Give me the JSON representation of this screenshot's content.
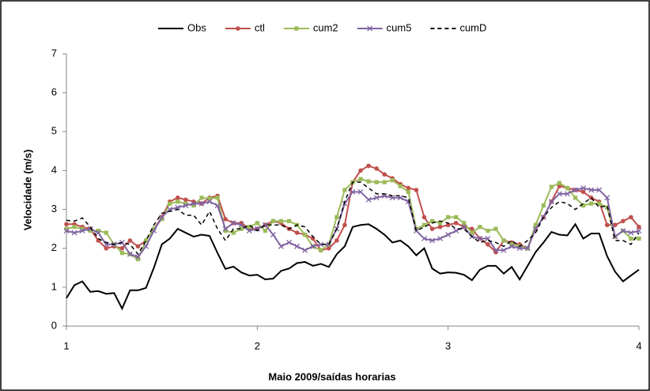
{
  "chart_data": {
    "type": "line",
    "xlabel": "Maio 2009/saídas horarias",
    "ylabel": "Velocidade (m/s)",
    "x": [
      1,
      1.0417,
      1.0833,
      1.125,
      1.1667,
      1.2083,
      1.25,
      1.2917,
      1.3333,
      1.375,
      1.4167,
      1.4583,
      1.5,
      1.5417,
      1.5833,
      1.625,
      1.6667,
      1.7083,
      1.75,
      1.7917,
      1.8333,
      1.875,
      1.9167,
      1.9583,
      2,
      2.0417,
      2.0833,
      2.125,
      2.1667,
      2.2083,
      2.25,
      2.2917,
      2.3333,
      2.375,
      2.4167,
      2.4583,
      2.5,
      2.5417,
      2.5833,
      2.625,
      2.6667,
      2.7083,
      2.75,
      2.7917,
      2.8333,
      2.875,
      2.9167,
      2.9583,
      3,
      3.0417,
      3.0833,
      3.125,
      3.1667,
      3.2083,
      3.25,
      3.2917,
      3.3333,
      3.375,
      3.4167,
      3.4583,
      3.5,
      3.5417,
      3.5833,
      3.625,
      3.6667,
      3.7083,
      3.75,
      3.7917,
      3.8333,
      3.875,
      3.9167,
      3.9583,
      4
    ],
    "series": [
      {
        "name": "Obs",
        "color": "#000000",
        "marker": "none",
        "dash": false,
        "values": [
          0.72,
          1.05,
          1.15,
          0.88,
          0.9,
          0.83,
          0.85,
          0.45,
          0.92,
          0.92,
          0.98,
          1.5,
          2.1,
          2.25,
          2.5,
          2.4,
          2.3,
          2.35,
          2.32,
          1.88,
          1.47,
          1.53,
          1.38,
          1.3,
          1.32,
          1.2,
          1.22,
          1.42,
          1.48,
          1.62,
          1.65,
          1.55,
          1.6,
          1.52,
          1.85,
          2.05,
          2.55,
          2.6,
          2.62,
          2.5,
          2.35,
          2.15,
          2.2,
          2.05,
          1.82,
          2.0,
          1.48,
          1.35,
          1.38,
          1.37,
          1.32,
          1.18,
          1.45,
          1.55,
          1.55,
          1.35,
          1.52,
          1.2,
          1.55,
          1.9,
          2.15,
          2.42,
          2.35,
          2.33,
          2.62,
          2.25,
          2.38,
          2.38,
          1.8,
          1.4,
          1.15,
          1.3,
          1.45
        ]
      },
      {
        "name": "ctl",
        "color": "#c0504d",
        "marker": "circle",
        "dash": false,
        "values": [
          2.62,
          2.62,
          2.55,
          2.5,
          2.2,
          2.0,
          2.05,
          2.0,
          2.2,
          2.05,
          2.2,
          2.5,
          2.8,
          3.2,
          3.3,
          3.25,
          3.2,
          3.15,
          3.3,
          3.35,
          2.75,
          2.65,
          2.65,
          2.5,
          2.5,
          2.6,
          2.7,
          2.65,
          2.5,
          2.4,
          2.35,
          2.25,
          1.95,
          2.0,
          2.2,
          2.6,
          3.7,
          4.0,
          4.12,
          4.05,
          3.9,
          3.8,
          3.65,
          3.55,
          3.5,
          2.8,
          2.5,
          2.55,
          2.6,
          2.65,
          2.55,
          2.5,
          2.25,
          2.1,
          1.9,
          2.2,
          2.15,
          2.1,
          2.0,
          2.5,
          2.8,
          3.2,
          3.6,
          3.55,
          3.5,
          3.45,
          3.3,
          3.2,
          2.6,
          2.6,
          2.7,
          2.8,
          2.55
        ]
      },
      {
        "name": "cum2",
        "color": "#9bbb59",
        "marker": "square",
        "dash": false,
        "values": [
          2.5,
          2.55,
          2.5,
          2.45,
          2.45,
          2.4,
          2.1,
          1.88,
          1.85,
          1.72,
          2.2,
          2.5,
          2.75,
          3.15,
          3.2,
          3.15,
          3.1,
          3.3,
          3.28,
          3.3,
          2.45,
          2.4,
          2.5,
          2.55,
          2.65,
          2.45,
          2.7,
          2.7,
          2.7,
          2.6,
          2.35,
          2.05,
          1.95,
          2.1,
          2.8,
          3.5,
          3.7,
          3.78,
          3.72,
          3.7,
          3.7,
          3.75,
          3.6,
          3.45,
          2.5,
          2.6,
          2.7,
          2.65,
          2.8,
          2.8,
          2.65,
          2.4,
          2.55,
          2.45,
          2.5,
          2.2,
          2.1,
          2.05,
          2.0,
          2.6,
          3.1,
          3.58,
          3.68,
          3.55,
          3.3,
          3.1,
          3.15,
          3.15,
          3.05,
          2.3,
          2.45,
          2.25,
          2.25
        ]
      },
      {
        "name": "cum5",
        "color": "#8064a2",
        "marker": "cross",
        "dash": false,
        "values": [
          2.45,
          2.4,
          2.45,
          2.5,
          2.4,
          2.1,
          2.1,
          2.15,
          1.85,
          1.78,
          2.05,
          2.45,
          2.8,
          3.0,
          3.05,
          3.1,
          3.15,
          3.15,
          3.2,
          3.1,
          2.5,
          2.65,
          2.6,
          2.45,
          2.5,
          2.6,
          2.35,
          2.05,
          2.15,
          2.05,
          1.95,
          2.05,
          2.1,
          2.1,
          2.5,
          3.15,
          3.45,
          3.45,
          3.25,
          3.3,
          3.35,
          3.3,
          3.3,
          3.2,
          2.45,
          2.25,
          2.2,
          2.25,
          2.35,
          2.45,
          2.55,
          2.3,
          2.25,
          2.25,
          1.95,
          1.95,
          2.05,
          2.0,
          2.0,
          2.5,
          2.8,
          3.2,
          3.4,
          3.4,
          3.5,
          3.55,
          3.5,
          3.5,
          3.3,
          2.3,
          2.45,
          2.4,
          2.45
        ]
      },
      {
        "name": "cumD",
        "color": "#000000",
        "marker": "none",
        "dash": true,
        "values": [
          2.72,
          2.7,
          2.78,
          2.55,
          2.25,
          2.15,
          2.1,
          2.15,
          2.1,
          1.85,
          2.2,
          2.6,
          2.9,
          2.95,
          3.0,
          2.85,
          2.85,
          2.6,
          2.95,
          2.5,
          2.2,
          2.5,
          2.5,
          2.6,
          2.45,
          2.6,
          2.6,
          2.6,
          2.5,
          2.6,
          2.55,
          2.3,
          2.1,
          2.1,
          2.5,
          3.2,
          3.7,
          3.7,
          3.55,
          3.4,
          3.4,
          3.35,
          3.35,
          3.3,
          2.45,
          2.55,
          2.65,
          2.7,
          2.65,
          2.5,
          2.5,
          2.3,
          2.15,
          2.2,
          2.15,
          2.05,
          2.2,
          2.05,
          2.2,
          2.4,
          2.8,
          3.05,
          3.2,
          3.15,
          3.0,
          3.15,
          3.3,
          3.05,
          3.1,
          2.2,
          2.2,
          2.1,
          2.4
        ]
      }
    ],
    "xlim": [
      1,
      4
    ],
    "xticks": [
      1,
      2,
      3,
      4
    ],
    "ylim": [
      0,
      7
    ],
    "yticks": [
      0,
      1,
      2,
      3,
      4,
      5,
      6,
      7
    ],
    "legend": "top"
  }
}
